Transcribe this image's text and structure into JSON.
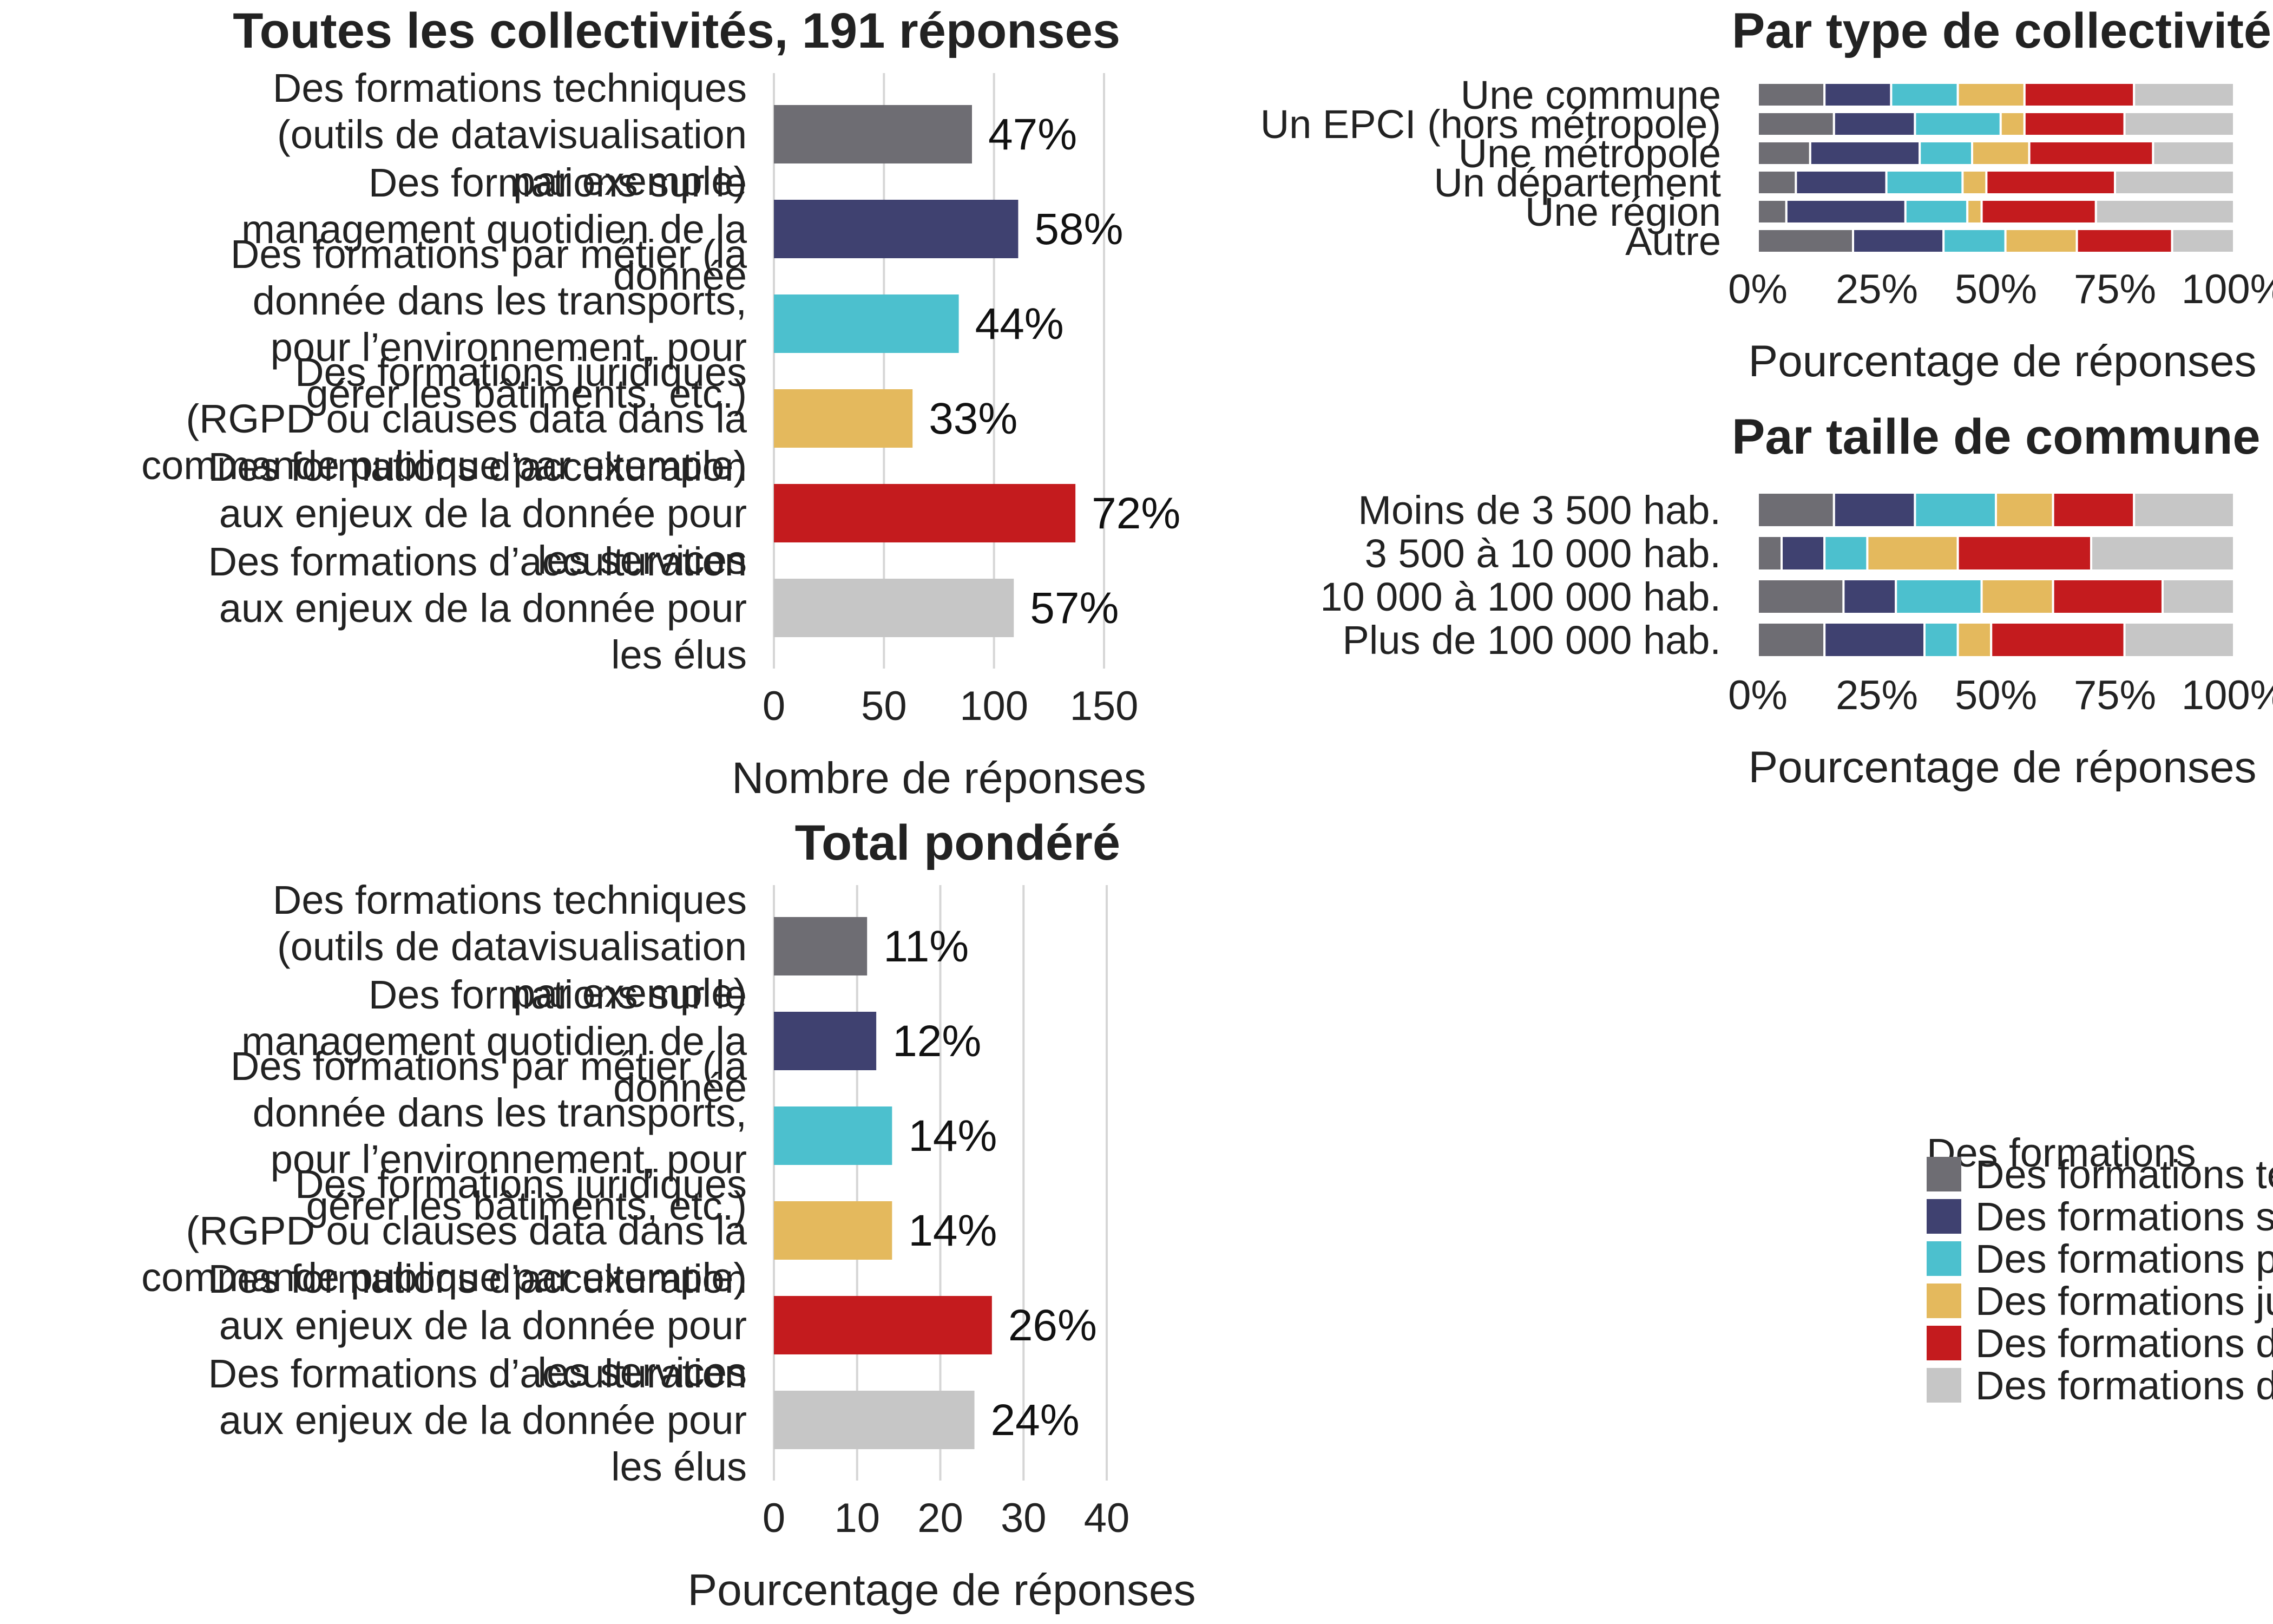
{
  "chart_data": [
    {
      "id": "toutes",
      "type": "bar",
      "orientation": "horizontal",
      "title": "Toutes les collectivités, 191 réponses",
      "categories": [
        "Des formations techniques (outils de datavisualisation par exemple)",
        "Des formations sur le management quotidien de la donnée",
        "Des formations par métier (la donnée dans les transports, pour l’environnement, pour gérer les bâtiments, etc.)",
        "Des formations juridiques (RGPD ou clauses data dans la commande publique par exemple)",
        "Des formations d’acculturation aux enjeux de la donnée pour les services",
        "Des formations d’acculturation aux enjeux de la donnée pour les élus"
      ],
      "category_lines": [
        [
          "Des formations techniques",
          "(outils de datavisualisation",
          "par exemple)"
        ],
        [
          "Des formations sur le",
          "management quotidien de la",
          "donnée"
        ],
        [
          "Des formations par métier (la",
          "donnée dans les transports,",
          "pour l’environnement, pour",
          "gérer les bâtiments, etc.)"
        ],
        [
          "Des formations juridiques",
          "(RGPD ou clauses data dans la",
          "commande publique par exemple)"
        ],
        [
          "Des formations d’acculturation",
          "aux enjeux de la donnée pour",
          "les services"
        ],
        [
          "Des formations d’acculturation",
          "aux enjeux de la donnée pour",
          "les élus"
        ]
      ],
      "values": [
        90,
        111,
        84,
        63,
        137,
        109
      ],
      "value_labels": [
        "47%",
        "58%",
        "44%",
        "33%",
        "72%",
        "57%"
      ],
      "xlabel": "Nombre de réponses",
      "xlim": [
        0,
        150
      ],
      "xticks": [
        0,
        50,
        100,
        150
      ],
      "xtick_labels": [
        "0",
        "50",
        "100",
        "150"
      ]
    },
    {
      "id": "total",
      "type": "bar",
      "orientation": "horizontal",
      "title": "Total pondéré",
      "categories": [
        "Des formations techniques (outils de datavisualisation par exemple)",
        "Des formations sur le management quotidien de la donnée",
        "Des formations par métier (la donnée dans les transports, pour l’environnement, pour gérer les bâtiments, etc.)",
        "Des formations juridiques (RGPD ou clauses data dans la commande publique par exemple)",
        "Des formations d’acculturation aux enjeux de la donnée pour les services",
        "Des formations d’acculturation aux enjeux de la donnée pour les élus"
      ],
      "category_lines": [
        [
          "Des formations techniques",
          "(outils de datavisualisation",
          "par exemple)"
        ],
        [
          "Des formations sur le",
          "management quotidien de la",
          "donnée"
        ],
        [
          "Des formations par métier (la",
          "donnée dans les transports,",
          "pour l’environnement, pour",
          "gérer les bâtiments, etc.)"
        ],
        [
          "Des formations juridiques",
          "(RGPD ou clauses data dans la",
          "commande publique par exemple)"
        ],
        [
          "Des formations d’acculturation",
          "aux enjeux de la donnée pour",
          "les services"
        ],
        [
          "Des formations d’acculturation",
          "aux enjeux de la donnée pour",
          "les élus"
        ]
      ],
      "values": [
        11.2,
        12.3,
        14.2,
        14.2,
        26.2,
        24.1
      ],
      "value_labels": [
        "11%",
        "12%",
        "14%",
        "14%",
        "26%",
        "24%"
      ],
      "xlabel": "Pourcentage de réponses",
      "xlim": [
        0,
        40
      ],
      "xticks": [
        0,
        10,
        20,
        30,
        40
      ],
      "xtick_labels": [
        "0",
        "10",
        "20",
        "30",
        "40"
      ]
    },
    {
      "id": "type",
      "type": "bar",
      "stacked": true,
      "orientation": "horizontal",
      "title": "Par type de collectivité",
      "categories": [
        "Une commune",
        "Un EPCI (hors métropole)",
        "Une métropole",
        "Un département",
        "Une région",
        "Autre"
      ],
      "series": [
        {
          "name": "Des formations techniques (outils de datavisualisation par exemple)",
          "values": [
            14,
            16,
            11,
            8,
            6,
            20
          ]
        },
        {
          "name": "Des formations sur le management quotidien de la donnée",
          "values": [
            14,
            17,
            23,
            19,
            25,
            19
          ]
        },
        {
          "name": "Des formations par métier (la donnée dans les transports, pour l’environnement, pour gérer les bâtiments, etc.)",
          "values": [
            14,
            18,
            11,
            16,
            13,
            13
          ]
        },
        {
          "name": "Des formations juridiques (RGPD ou clauses data dans la commande publique par exemple)",
          "values": [
            14,
            5,
            12,
            5,
            3,
            15
          ]
        },
        {
          "name": "Des formations d’acculturation aux enjeux de la donnée pour les services",
          "values": [
            23,
            21,
            26,
            27,
            24,
            20
          ]
        },
        {
          "name": "Des formations d’acculturation aux enjeux de la donnée pour les élus",
          "values": [
            21,
            23,
            17,
            25,
            29,
            13
          ]
        }
      ],
      "xlabel": "Pourcentage de réponses",
      "xlim": [
        0,
        100
      ],
      "xticks": [
        0,
        25,
        50,
        75,
        100
      ],
      "xtick_labels": [
        "0%",
        "25%",
        "50%",
        "75%",
        "100%"
      ]
    },
    {
      "id": "taille",
      "type": "bar",
      "stacked": true,
      "orientation": "horizontal",
      "title": "Par taille de commune",
      "categories": [
        "Moins de 3 500 hab.",
        "3 500 à 10 000 hab.",
        "10 000 à 100 000 hab.",
        "Plus de 100 000 hab."
      ],
      "series": [
        {
          "name": "Des formations techniques (outils de datavisualisation par exemple)",
          "values": [
            16,
            5,
            18,
            14
          ]
        },
        {
          "name": "Des formations sur le management quotidien de la donnée",
          "values": [
            17,
            9,
            11,
            21
          ]
        },
        {
          "name": "Des formations par métier (la donnée dans les transports, pour l’environnement, pour gérer les bâtiments, etc.)",
          "values": [
            17,
            9,
            18,
            7
          ]
        },
        {
          "name": "Des formations juridiques (RGPD ou clauses data dans la commande publique par exemple)",
          "values": [
            12,
            19,
            15,
            7
          ]
        },
        {
          "name": "Des formations d’acculturation aux enjeux de la donnée pour les services",
          "values": [
            17,
            28,
            23,
            28
          ]
        },
        {
          "name": "Des formations d’acculturation aux enjeux de la donnée pour les élus",
          "values": [
            21,
            30,
            15,
            23
          ]
        }
      ],
      "xlabel": "Pourcentage de réponses",
      "xlim": [
        0,
        100
      ],
      "xticks": [
        0,
        25,
        50,
        75,
        100
      ],
      "xtick_labels": [
        "0%",
        "25%",
        "50%",
        "75%",
        "100%"
      ]
    }
  ],
  "legend": {
    "title": "Des formations",
    "placement": "bottom-right",
    "entries": [
      {
        "label": "Des formations techniques (outils de datavisualisation par exemple)",
        "color": "#6e6d73"
      },
      {
        "label": "Des formations sur le management quotidien de la donnée",
        "color": "#3f4170"
      },
      {
        "label": "Des formations par métier (la donnée dans les transports, pour l’environnement, pour gérer les bâtiments, etc.)",
        "color": "#4cc0ce"
      },
      {
        "label": "Des formations juridiques (RGPD ou clauses data dans la commande publique par exemple)",
        "color": "#e4b95d"
      },
      {
        "label": "Des formations d’acculturation aux enjeux de la donnée pour les services",
        "color": "#c41b1e"
      },
      {
        "label": "Des formations d’acculturation aux enjeux de la donnée pour les élus",
        "color": "#c6c6c6"
      }
    ]
  }
}
